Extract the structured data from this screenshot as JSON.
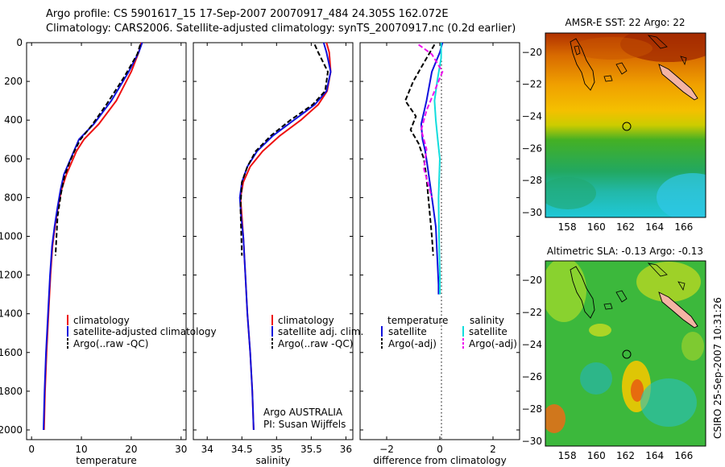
{
  "header": {
    "line1": "Argo profile: CS 5901617_15 17-Sep-2007 20070917_484 24.305S 162.072E",
    "line2": "Climatology: CARS2006. Satellite-adjusted climatology: synTS_20070917.nc (0.2d earlier)"
  },
  "timestamp": "CSIRO 25-Sep-2007 10:31:26",
  "colors": {
    "climatology": "#ee1111",
    "satellite": "#1111dd",
    "argo": "#000000",
    "salinity_satellite": "#11dddd",
    "salinity_argo": "#ee11ee"
  },
  "chart_data": [
    {
      "type": "line",
      "xlabel": "temperature",
      "xlim": [
        -1,
        31
      ],
      "xticks": [
        0,
        10,
        20,
        30
      ],
      "ylim": [
        0,
        2050
      ],
      "yticks": [
        0,
        200,
        400,
        600,
        800,
        1000,
        1200,
        1400,
        1600,
        1800,
        2000
      ],
      "y_reversed": true,
      "legend": [
        "climatology",
        "satellite-adjusted climatology",
        "Argo(..raw -QC)"
      ],
      "series": [
        {
          "name": "climatology",
          "style": "solid",
          "color_key": "climatology",
          "x": [
            22.0,
            21.5,
            20.0,
            17.0,
            13.5,
            10.5,
            9.0,
            8.0,
            7.0,
            6.0,
            5.3,
            4.7,
            4.2,
            3.8,
            3.4,
            3.0,
            2.7,
            2.5
          ],
          "y": [
            0,
            50,
            150,
            300,
            420,
            500,
            560,
            620,
            680,
            760,
            850,
            950,
            1050,
            1200,
            1400,
            1600,
            1800,
            2000
          ]
        },
        {
          "name": "satellite-adjusted climatology",
          "style": "solid",
          "color_key": "satellite",
          "x": [
            22.2,
            21.5,
            19.5,
            16.0,
            12.5,
            9.5,
            8.5,
            7.5,
            6.5,
            5.8,
            5.2,
            4.6,
            4.1,
            3.7,
            3.3,
            2.9,
            2.6,
            2.4
          ],
          "y": [
            0,
            50,
            150,
            300,
            420,
            500,
            560,
            620,
            680,
            760,
            850,
            950,
            1050,
            1200,
            1400,
            1600,
            1800,
            2000
          ]
        },
        {
          "name": "Argo(..raw -QC)",
          "style": "dashed",
          "color_key": "argo",
          "x": [
            21.8,
            21.2,
            18.5,
            15.0,
            12.0,
            9.8,
            8.6,
            7.6,
            6.6,
            5.9,
            5.2,
            4.8
          ],
          "y": [
            10,
            60,
            180,
            320,
            430,
            500,
            560,
            620,
            690,
            780,
            900,
            1100
          ]
        }
      ]
    },
    {
      "type": "line",
      "xlabel": "salinity",
      "xlim": [
        33.8,
        36.1
      ],
      "xticks": [
        34,
        34.5,
        35,
        35.5,
        36
      ],
      "ylim": [
        0,
        2050
      ],
      "y_reversed": true,
      "legend": [
        "climatology",
        "satellite adj. clim.",
        "Argo(..raw -QC)"
      ],
      "annotation": [
        "Argo AUSTRALIA",
        "PI: Susan Wijffels"
      ],
      "series": [
        {
          "name": "climatology",
          "style": "solid",
          "color_key": "climatology",
          "x": [
            35.72,
            35.76,
            35.78,
            35.73,
            35.6,
            35.35,
            35.05,
            34.8,
            34.62,
            34.52,
            34.48,
            34.5,
            34.52,
            34.55,
            34.58,
            34.62,
            34.65,
            34.67
          ],
          "y": [
            0,
            50,
            150,
            250,
            320,
            400,
            480,
            560,
            640,
            720,
            800,
            900,
            1000,
            1200,
            1400,
            1600,
            1800,
            2000
          ]
        },
        {
          "name": "satellite adj. clim.",
          "style": "solid",
          "color_key": "satellite",
          "x": [
            35.68,
            35.72,
            35.78,
            35.72,
            35.55,
            35.25,
            34.95,
            34.72,
            34.58,
            34.5,
            34.47,
            34.49,
            34.52,
            34.55,
            34.58,
            34.62,
            34.65,
            34.67
          ],
          "y": [
            0,
            50,
            150,
            250,
            320,
            400,
            480,
            560,
            640,
            720,
            800,
            900,
            1000,
            1200,
            1400,
            1600,
            1800,
            2000
          ]
        },
        {
          "name": "Argo(..raw -QC)",
          "style": "dashed",
          "color_key": "argo",
          "x": [
            35.55,
            35.6,
            35.74,
            35.7,
            35.52,
            35.2,
            34.92,
            34.7,
            34.58,
            34.5,
            34.48,
            34.5
          ],
          "y": [
            10,
            50,
            150,
            250,
            320,
            400,
            480,
            560,
            640,
            720,
            850,
            1100
          ]
        }
      ]
    },
    {
      "type": "line",
      "xlabel": "difference from climatology",
      "xlim": [
        -3,
        3
      ],
      "xticks": [
        -2,
        0,
        2
      ],
      "ylim": [
        0,
        2050
      ],
      "y_reversed": true,
      "legend_titles": [
        "temperature",
        "salinity"
      ],
      "legend": [
        "satellite",
        "Argo(-adj)",
        "satellite",
        "Argo(-adj)"
      ],
      "series": [
        {
          "name": "satellite",
          "group": "temperature",
          "style": "solid",
          "color_key": "satellite",
          "x": [
            0.1,
            0.0,
            -0.3,
            -0.5,
            -0.7,
            -0.65,
            -0.55,
            -0.45,
            -0.35,
            -0.25,
            -0.15,
            -0.1,
            -0.05,
            -0.05
          ],
          "y": [
            0,
            50,
            150,
            300,
            420,
            500,
            560,
            650,
            750,
            850,
            950,
            1100,
            1250,
            1300
          ]
        },
        {
          "name": "Argo(-adj)",
          "group": "temperature",
          "style": "dashed",
          "color_key": "argo",
          "x": [
            -0.2,
            -0.5,
            -1.0,
            -1.3,
            -0.9,
            -1.1,
            -0.8,
            -0.6,
            -0.5,
            -0.4,
            -0.3,
            -0.25
          ],
          "y": [
            10,
            80,
            200,
            300,
            380,
            450,
            520,
            600,
            700,
            850,
            1000,
            1100
          ]
        },
        {
          "name": "satellite",
          "group": "salinity",
          "style": "solid",
          "color_key": "salinity_satellite",
          "x": [
            0.05,
            0.05,
            -0.1,
            -0.2,
            -0.15,
            -0.08,
            0.0,
            -0.05,
            -0.03,
            0.0,
            0.0
          ],
          "y": [
            0,
            80,
            200,
            300,
            400,
            500,
            600,
            800,
            1000,
            1200,
            1300
          ]
        },
        {
          "name": "Argo(-adj)",
          "group": "salinity",
          "style": "dashed",
          "color_key": "salinity_argo",
          "x": [
            -0.8,
            -0.3,
            0.1,
            -0.2,
            -0.5,
            -0.7,
            -0.5,
            -0.6,
            -0.3
          ],
          "y": [
            10,
            60,
            150,
            250,
            350,
            450,
            550,
            650,
            800
          ]
        }
      ]
    },
    {
      "type": "heatmap",
      "title": "AMSR-E SST: 22 Argo: 22",
      "xticks": [
        158,
        160,
        162,
        164,
        166
      ],
      "yticks": [
        -20,
        -22,
        -24,
        -26,
        -28,
        -30
      ],
      "xlim": [
        156.5,
        167.5
      ],
      "ylim": [
        -30.3,
        -18.8
      ],
      "marker": {
        "lon": 162.072,
        "lat": -24.305
      }
    },
    {
      "type": "heatmap",
      "title": "Altimetric SLA: -0.13 Argo: -0.13",
      "xticks": [
        158,
        160,
        162,
        164,
        166
      ],
      "yticks": [
        -20,
        -22,
        -24,
        -26,
        -28,
        -30
      ],
      "xlim": [
        156.5,
        167.5
      ],
      "ylim": [
        -30.3,
        -18.8
      ],
      "marker": {
        "lon": 162.072,
        "lat": -24.305
      }
    }
  ]
}
